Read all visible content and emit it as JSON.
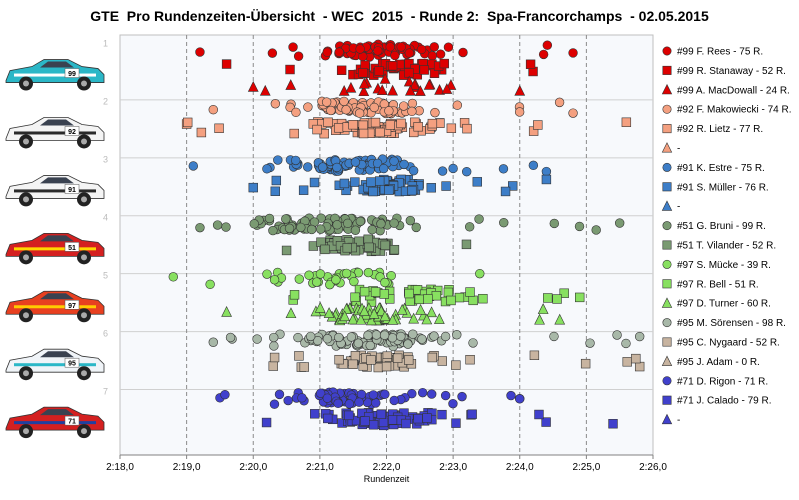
{
  "chart_data": {
    "type": "scatter",
    "title": "GTE  Pro Rundenzeiten-Übersicht  - WEC  2015  - Runde 2:  Spa-Francorchamps  - 02.05.2015",
    "xlabel": "Rundenzeit",
    "ylabel": "",
    "x_tick_labels": [
      "2:18,0",
      "2:19,0",
      "2:20,0",
      "2:21,0",
      "2:22,0",
      "2:23,0",
      "2:24,0",
      "2:25,0",
      "2:26,0"
    ],
    "xlim_seconds": [
      138,
      146
    ],
    "y_tick_labels": [
      "1",
      "2",
      "3",
      "4",
      "5",
      "6",
      "7"
    ],
    "ylim": [
      0.85,
      8.1
    ],
    "grid": "vertical dashed",
    "legend_position": "right",
    "series": [
      {
        "name": "#99 F. Rees - 75 R.",
        "color": "#dd0000",
        "marker": "circle",
        "y_center": 1.12,
        "x_min": 139.2,
        "x_max": 144.8,
        "median": 141.9,
        "spread": 0.85,
        "count": 75
      },
      {
        "name": "#99 R. Stanaway - 52 R.",
        "color": "#dd0000",
        "marker": "square",
        "y_center": 1.45,
        "x_min": 139.6,
        "x_max": 144.2,
        "median": 142.1,
        "spread": 0.8,
        "count": 52
      },
      {
        "name": "#99 A. MacDowall - 24 R.",
        "color": "#dd0000",
        "marker": "triangle",
        "y_center": 1.72,
        "x_min": 140.0,
        "x_max": 144.0,
        "median": 142.2,
        "spread": 0.8,
        "count": 24
      },
      {
        "name": "#92 F. Makowiecki - 74 R.",
        "color": "#f4a080",
        "marker": "circle",
        "y_center": 2.1,
        "x_min": 139.4,
        "x_max": 144.8,
        "median": 141.6,
        "spread": 0.85,
        "count": 74
      },
      {
        "name": "#92 R. Lietz - 77 R.",
        "color": "#f4a080",
        "marker": "square",
        "y_center": 2.45,
        "x_min": 139.0,
        "x_max": 145.6,
        "median": 141.9,
        "spread": 0.95,
        "count": 77
      },
      {
        "name": "-",
        "color": "#f4a080",
        "marker": "triangle",
        "y_center": 2.72,
        "x_min": 0,
        "x_max": 0,
        "median": 0,
        "spread": 0,
        "count": 0
      },
      {
        "name": "#91 K. Estre - 75 R.",
        "color": "#3d7ec8",
        "marker": "circle",
        "y_center": 3.1,
        "x_min": 139.1,
        "x_max": 144.4,
        "median": 141.5,
        "spread": 0.85,
        "count": 75
      },
      {
        "name": "#91 S. Müller - 76 R.",
        "color": "#3d7ec8",
        "marker": "square",
        "y_center": 3.45,
        "x_min": 140.0,
        "x_max": 144.4,
        "median": 142.0,
        "spread": 0.7,
        "count": 76
      },
      {
        "name": "-",
        "color": "#3d7ec8",
        "marker": "triangle",
        "y_center": 3.72,
        "x_min": 0,
        "x_max": 0,
        "median": 0,
        "spread": 0,
        "count": 0
      },
      {
        "name": "#51 G. Bruni - 99 R.",
        "color": "#7a9a72",
        "marker": "circle",
        "y_center": 4.12,
        "x_min": 139.2,
        "x_max": 145.5,
        "median": 141.2,
        "spread": 1.0,
        "count": 99
      },
      {
        "name": "#51 T. Vilander - 52 R.",
        "color": "#7a9a72",
        "marker": "square",
        "y_center": 4.48,
        "x_min": 140.5,
        "x_max": 143.2,
        "median": 141.6,
        "spread": 0.55,
        "count": 52
      },
      {
        "name": "#97 S. Mücke - 39 R.",
        "color": "#88e060",
        "marker": "circle",
        "y_center": 5.05,
        "x_min": 138.8,
        "x_max": 143.4,
        "median": 141.2,
        "spread": 0.9,
        "count": 39
      },
      {
        "name": "#97 R. Bell - 51 R.",
        "color": "#88e060",
        "marker": "square",
        "y_center": 5.35,
        "x_min": 140.6,
        "x_max": 144.9,
        "median": 142.3,
        "spread": 0.9,
        "count": 51
      },
      {
        "name": "#97 D. Turner - 60 R.",
        "color": "#88e060",
        "marker": "triangle",
        "y_center": 5.67,
        "x_min": 139.6,
        "x_max": 144.6,
        "median": 141.8,
        "spread": 0.95,
        "count": 60
      },
      {
        "name": "#95 M. Sörensen - 98 R.",
        "color": "#a8b8a8",
        "marker": "circle",
        "y_center": 6.12,
        "x_min": 139.4,
        "x_max": 145.8,
        "median": 141.7,
        "spread": 1.0,
        "count": 98
      },
      {
        "name": "#95 C. Nygaard - 52 R.",
        "color": "#c8b4a0",
        "marker": "square",
        "y_center": 6.48,
        "x_min": 140.3,
        "x_max": 145.8,
        "median": 142.0,
        "spread": 0.95,
        "count": 52
      },
      {
        "name": "#95 J. Adam - 0 R.",
        "color": "#c8b4a0",
        "marker": "triangle",
        "y_center": 6.72,
        "x_min": 0,
        "x_max": 0,
        "median": 0,
        "spread": 0,
        "count": 0
      },
      {
        "name": "#71 D. Rigon - 71 R.",
        "color": "#4040cc",
        "marker": "circle",
        "y_center": 7.12,
        "x_min": 139.5,
        "x_max": 144.0,
        "median": 141.3,
        "spread": 0.75,
        "count": 71
      },
      {
        "name": "#71 J. Calado - 79 R.",
        "color": "#4040cc",
        "marker": "square",
        "y_center": 7.48,
        "x_min": 140.2,
        "x_max": 145.4,
        "median": 142.1,
        "spread": 0.85,
        "count": 79
      },
      {
        "name": "-",
        "color": "#4040cc",
        "marker": "triangle",
        "y_center": 7.72,
        "x_min": 0,
        "x_max": 0,
        "median": 0,
        "spread": 0,
        "count": 0
      }
    ],
    "car_images": [
      {
        "number": "99",
        "icon": "aston-martin-car-icon",
        "body": "#2bb7c7",
        "accent": "#ffffff"
      },
      {
        "number": "92",
        "icon": "porsche-car-icon",
        "body": "#f4f4f4",
        "accent": "#2a2a2a"
      },
      {
        "number": "91",
        "icon": "porsche-car-icon",
        "body": "#f4f4f4",
        "accent": "#2a2a2a"
      },
      {
        "number": "51",
        "icon": "ferrari-car-icon",
        "body": "#d42020",
        "accent": "#ffd700"
      },
      {
        "number": "97",
        "icon": "aston-martin-car-icon",
        "body": "#e84020",
        "accent": "#ffcc00"
      },
      {
        "number": "95",
        "icon": "aston-martin-car-icon",
        "body": "#f0f4f8",
        "accent": "#2bb7c7"
      },
      {
        "number": "71",
        "icon": "ferrari-car-icon",
        "body": "#d42020",
        "accent": "#2040a0"
      }
    ]
  }
}
